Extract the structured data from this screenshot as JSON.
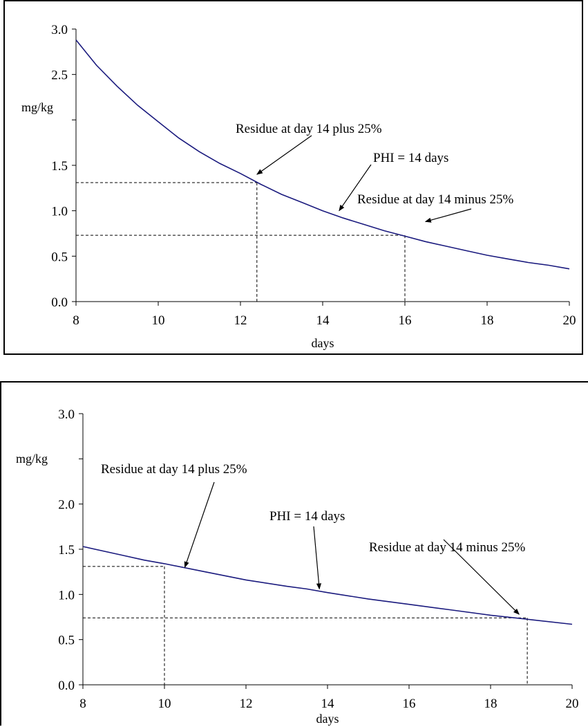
{
  "chart_data": [
    {
      "type": "line",
      "xlabel": "days",
      "ylabel": "mg/kg",
      "xlim": [
        8,
        20
      ],
      "ylim": [
        0,
        3
      ],
      "x_ticks": [
        8,
        10,
        12,
        14,
        16,
        18,
        20
      ],
      "y_ticks": [
        0,
        0.5,
        1.0,
        1.5,
        2.0,
        2.5,
        3.0
      ],
      "y_tick_labels": [
        "0.0",
        "0.5",
        "1.0",
        "1.5",
        "",
        "2.5",
        "3.0"
      ],
      "x_tick_labels": [
        "8",
        "10",
        "12",
        "14",
        "16",
        "18",
        "20"
      ],
      "grid": false,
      "line_color": "#1a1a7e",
      "series": [
        {
          "x": [
            8,
            8.5,
            9,
            9.5,
            10,
            10.5,
            11,
            11.5,
            12,
            12.5,
            13,
            13.5,
            14,
            14.5,
            15,
            15.5,
            16,
            16.5,
            17,
            17.5,
            18,
            18.5,
            19,
            19.5,
            20
          ],
          "values": [
            2.88,
            2.6,
            2.37,
            2.16,
            1.98,
            1.8,
            1.65,
            1.52,
            1.41,
            1.29,
            1.18,
            1.09,
            1.0,
            0.92,
            0.85,
            0.78,
            0.72,
            0.66,
            0.61,
            0.56,
            0.51,
            0.47,
            0.43,
            0.4,
            0.36
          ]
        }
      ],
      "reference_lines": [
        {
          "y": 1.31,
          "x": 12.4
        },
        {
          "y": 0.73,
          "x": 16.0
        }
      ],
      "annotations": [
        {
          "text": "Residue at day 14 plus 25%",
          "target_x": 12.4,
          "target_y": 1.4
        },
        {
          "text": "PHI = 14 days",
          "target_x": 14.4,
          "target_y": 1.0
        },
        {
          "text": "Residue at day 14 minus 25%",
          "target_x": 16.5,
          "target_y": 0.88
        }
      ]
    },
    {
      "type": "line",
      "xlabel": "days",
      "ylabel": "mg/kg",
      "xlim": [
        8,
        20
      ],
      "ylim": [
        0,
        3
      ],
      "x_ticks": [
        8,
        10,
        12,
        14,
        16,
        18,
        20
      ],
      "y_ticks": [
        0,
        0.5,
        1.0,
        1.5,
        2.0,
        2.5,
        3.0
      ],
      "y_tick_labels": [
        "0.0",
        "0.5",
        "1.0",
        "1.5",
        "2.0",
        "",
        "3.0"
      ],
      "x_tick_labels": [
        "8",
        "10",
        "12",
        "14",
        "16",
        "18",
        "20"
      ],
      "grid": false,
      "line_color": "#1a1a7e",
      "series": [
        {
          "x": [
            8,
            9,
            9.5,
            10,
            11,
            12,
            13,
            13.5,
            14,
            15,
            16,
            17,
            18,
            19,
            20
          ],
          "values": [
            1.53,
            1.43,
            1.38,
            1.34,
            1.25,
            1.16,
            1.09,
            1.06,
            1.02,
            0.95,
            0.89,
            0.83,
            0.77,
            0.72,
            0.67
          ]
        }
      ],
      "reference_lines": [
        {
          "y": 1.31,
          "x": 10.0
        },
        {
          "y": 0.74,
          "x": 18.9
        }
      ],
      "annotations": [
        {
          "text": "Residue at day 14 plus 25%",
          "target_x": 10.5,
          "target_y": 1.3
        },
        {
          "text": "PHI = 14 days",
          "target_x": 13.8,
          "target_y": 1.06
        },
        {
          "text": "Residue at day 14 minus 25%",
          "target_x": 18.7,
          "target_y": 0.78
        }
      ]
    }
  ]
}
